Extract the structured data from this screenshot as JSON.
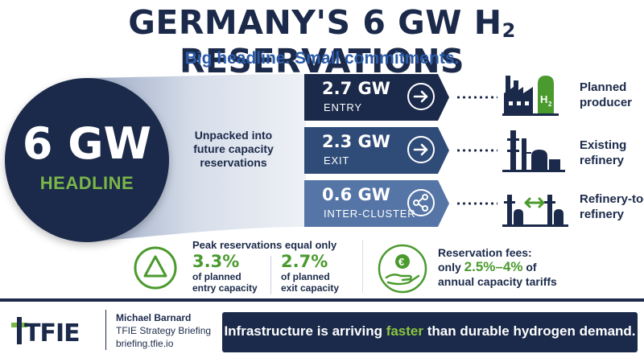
{
  "header": {
    "title": "GERMANY'S 6 GW H",
    "title_sub": "2",
    "title_end": " RESERVATIONS",
    "subtitle": "Big headline. Small commitments."
  },
  "headline": {
    "value": "6 GW",
    "label": "HEADLINE"
  },
  "unpacked_text": "Unpacked into future capacity reservations",
  "bands": [
    {
      "value": "2.7 GW",
      "label": "ENTRY",
      "icon": "arrow-right-icon",
      "dest": [
        "Planned",
        "producer"
      ],
      "dest_icon": "h2-factory-icon"
    },
    {
      "value": "2.3 GW",
      "label": "EXIT",
      "icon": "arrow-right-icon",
      "dest": [
        "Existing",
        "refinery"
      ],
      "dest_icon": "refinery-icon"
    },
    {
      "value": "0.6 GW",
      "label": "INTER-CLUSTER",
      "icon": "share-icon",
      "dest": [
        "Refinery-to-",
        "refinery"
      ],
      "dest_icon": "refinery-exchange-icon"
    }
  ],
  "peak": {
    "heading": "Peak reservations equal only",
    "stats": [
      {
        "pct": "3.3%",
        "desc": [
          "of planned",
          "entry capacity"
        ]
      },
      {
        "pct": "2.7%",
        "desc": [
          "of planned",
          "exit capacity"
        ]
      }
    ]
  },
  "fees": {
    "line1": "Reservation fees:",
    "line2_pre": "only ",
    "line2_hl": "2.5%–4%",
    "line2_post": " of",
    "line3": "annual capacity tariffs"
  },
  "footer": {
    "logo": "TFIE",
    "author": "Michael Barnard",
    "briefing": "TFIE Strategy Briefing",
    "site": "briefing.tfie.io",
    "tagline_pre": "Infrastructure is arriving ",
    "tagline_hl": "faster",
    "tagline_post": " than durable hydrogen demand."
  },
  "colors": {
    "navy": "#1b2a4a",
    "green": "#7ab648",
    "accent_blue": "#2a5aa8"
  }
}
